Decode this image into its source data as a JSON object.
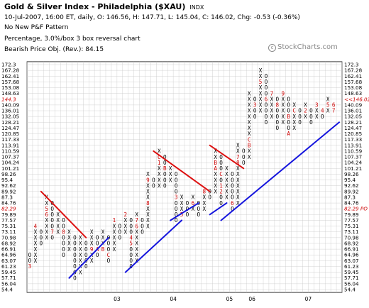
{
  "header": {
    "title": "Gold & Silver Index - Philadelphia ($XAU)",
    "index_tag": "INDX",
    "quote_line": "10-Jul-2007, 16:00 ET, daily, O: 146.56, H: 147.71, L: 145.04, C: 146.02, Chg: -0.53 (-0.36%)",
    "pattern_line": "No New P&F Pattern",
    "method_line": "Percentage, 3.0%/box 3 box reversal chart",
    "objective_line": "Bearish Price Obj. (Rev.): 84.15"
  },
  "watermark": {
    "symbol": "c",
    "text": "StockCharts.com"
  },
  "chart_data": {
    "type": "point-and-figure",
    "box_percent": 3.0,
    "reversal_boxes": 3,
    "y_levels": [
      "172.3",
      "167.28",
      "162.41",
      "157.68",
      "153.08",
      "148.63",
      "144.3",
      "140.09",
      "136.01",
      "132.05",
      "128.21",
      "124.47",
      "120.85",
      "117.33",
      "113.91",
      "110.59",
      "107.37",
      "104.24",
      "101.21",
      "98.26",
      "95.4",
      "92.62",
      "89.92",
      "87.3",
      "84.76",
      "82.29",
      "79.89",
      "77.57",
      "75.31",
      "73.11",
      "70.98",
      "68.92",
      "66.91",
      "64.96",
      "63.07",
      "61.23",
      "59.45",
      "57.71",
      "56.04",
      "54.4"
    ],
    "x_labels": [
      {
        "label": "03",
        "col": 16
      },
      {
        "label": "04",
        "col": 26
      },
      {
        "label": "05",
        "col": 36
      },
      {
        "label": "06",
        "col": 40
      },
      {
        "label": "07",
        "col": 50
      }
    ],
    "left_flags": [
      {
        "text": "144.3",
        "level": 144.3,
        "color": "#cc0000"
      },
      {
        "text": "82.29",
        "level": 82.29,
        "color": "#cc0000"
      }
    ],
    "right_flags": [
      {
        "text": "<<146.02",
        "level": 144.3,
        "color": "#cc0000"
      },
      {
        "text": "82.29 PO",
        "level": 82.29,
        "color": "#cc0000"
      }
    ],
    "columns": [
      {
        "col": 0,
        "type": "O",
        "from": 61.23,
        "to": 64.96,
        "marks": {
          "61.23": "3"
        }
      },
      {
        "col": 1,
        "type": "X",
        "from": 63.07,
        "to": 75.31,
        "marks": {
          "75.31": "4"
        }
      },
      {
        "col": 2,
        "type": "O",
        "from": 68.92,
        "to": 73.11
      },
      {
        "col": 3,
        "type": "X",
        "from": 70.98,
        "to": 87.3,
        "marks": {
          "82.29": "5",
          "79.89": "6"
        }
      },
      {
        "col": 4,
        "type": "O",
        "from": 70.98,
        "to": 84.76,
        "marks": {
          "73.11": "7"
        }
      },
      {
        "col": 5,
        "type": "X",
        "from": 73.11,
        "to": 79.89
      },
      {
        "col": 6,
        "type": "O",
        "from": 64.96,
        "to": 77.57,
        "marks": {
          "73.11": "8"
        }
      },
      {
        "col": 7,
        "type": "X",
        "from": 66.91,
        "to": 73.11
      },
      {
        "col": 8,
        "type": "O",
        "from": 57.71,
        "to": 70.98
      },
      {
        "col": 9,
        "type": "X",
        "from": 59.45,
        "to": 70.98
      },
      {
        "col": 10,
        "type": "O",
        "from": 61.23,
        "to": 68.92
      },
      {
        "col": 11,
        "type": "X",
        "from": 63.07,
        "to": 73.11,
        "marks": {
          "66.91": "9"
        }
      },
      {
        "col": 12,
        "type": "O",
        "from": 64.96,
        "to": 70.98,
        "marks": {
          "66.91": "A"
        }
      },
      {
        "col": 13,
        "type": "X",
        "from": 66.91,
        "to": 73.11,
        "marks": {
          "66.91": "B"
        }
      },
      {
        "col": 14,
        "type": "O",
        "from": 63.07,
        "to": 70.98,
        "marks": {
          "64.96": "C"
        }
      },
      {
        "col": 15,
        "type": "X",
        "from": 66.91,
        "to": 77.57,
        "marks": {
          "77.57": "1"
        }
      },
      {
        "col": 16,
        "type": "O",
        "from": 70.98,
        "to": 75.31
      },
      {
        "col": 17,
        "type": "X",
        "from": 73.11,
        "to": 79.89,
        "marks": {
          "79.89": "2"
        }
      },
      {
        "col": 18,
        "type": "O",
        "from": 61.23,
        "to": 77.57,
        "marks": {
          "70.98": "4",
          "68.92": "5"
        }
      },
      {
        "col": 19,
        "type": "X",
        "from": 63.07,
        "to": 79.89,
        "marks": {
          "75.31": "6",
          "77.57": "7"
        }
      },
      {
        "col": 20,
        "type": "O",
        "from": 73.11,
        "to": 77.57
      },
      {
        "col": 21,
        "type": "X",
        "from": 75.31,
        "to": 98.26,
        "marks": {
          "84.76": "8",
          "95.4": "9"
        }
      },
      {
        "col": 22,
        "type": "O",
        "from": 92.62,
        "to": 95.4
      },
      {
        "col": 23,
        "type": "X",
        "from": 92.62,
        "to": 110.59,
        "marks": {
          "107.37": "C",
          "104.24": "1"
        }
      },
      {
        "col": 24,
        "type": "O",
        "from": 92.62,
        "to": 107.37,
        "marks": {
          "101.21": "B"
        }
      },
      {
        "col": 25,
        "type": "X",
        "from": 95.4,
        "to": 101.21
      },
      {
        "col": 26,
        "type": "O",
        "from": 77.57,
        "to": 98.26,
        "marks": {
          "87.3": "3"
        }
      },
      {
        "col": 27,
        "type": "X",
        "from": 79.89,
        "to": 87.3,
        "marks": {
          "79.89": "5"
        }
      },
      {
        "col": 28,
        "type": "O",
        "from": 79.89,
        "to": 84.76
      },
      {
        "col": 29,
        "type": "X",
        "from": 82.29,
        "to": 87.3,
        "marks": {
          "84.76": "6"
        }
      },
      {
        "col": 30,
        "type": "O",
        "from": 79.89,
        "to": 84.76
      },
      {
        "col": 31,
        "type": "X",
        "from": 82.29,
        "to": 89.92,
        "marks": {
          "89.92": "8"
        }
      },
      {
        "col": 32,
        "type": "O",
        "from": 87.3,
        "to": 89.92
      },
      {
        "col": 33,
        "type": "X",
        "from": 89.92,
        "to": 110.59,
        "marks": {
          "101.21": "A",
          "104.24": "B"
        }
      },
      {
        "col": 34,
        "type": "O",
        "from": 84.76,
        "to": 107.37,
        "marks": {
          "98.26": "C",
          "92.62": "1",
          "89.92": "2"
        }
      },
      {
        "col": 35,
        "type": "X",
        "from": 87.3,
        "to": 101.21
      },
      {
        "col": 36,
        "type": "O",
        "from": 82.29,
        "to": 98.26,
        "marks": {
          "84.76": "6"
        }
      },
      {
        "col": 37,
        "type": "X",
        "from": 84.76,
        "to": 113.91,
        "marks": {
          "107.37": "7",
          "104.24": "8"
        }
      },
      {
        "col": 38,
        "type": "O",
        "from": 104.24,
        "to": 110.59
      },
      {
        "col": 39,
        "type": "X",
        "from": 107.37,
        "to": 148.63,
        "marks": {
          "113.91": "B",
          "117.33": "C"
        }
      },
      {
        "col": 40,
        "type": "O",
        "from": 132.05,
        "to": 144.3,
        "marks": {
          "140.09": "3"
        }
      },
      {
        "col": 41,
        "type": "X",
        "from": 136.01,
        "to": 167.28,
        "marks": {
          "157.68": "5"
        }
      },
      {
        "col": 42,
        "type": "O",
        "from": 128.21,
        "to": 162.41,
        "marks": {
          "144.3": "6"
        }
      },
      {
        "col": 43,
        "type": "X",
        "from": 132.05,
        "to": 148.63,
        "marks": {
          "148.63": "7"
        }
      },
      {
        "col": 44,
        "type": "O",
        "from": 124.47,
        "to": 144.3,
        "marks": {
          "140.09": "8"
        }
      },
      {
        "col": 45,
        "type": "X",
        "from": 128.21,
        "to": 148.63,
        "marks": {
          "148.63": "9"
        }
      },
      {
        "col": 46,
        "type": "O",
        "from": 120.85,
        "to": 144.3,
        "marks": {
          "120.85": "A",
          "132.05": "B"
        }
      },
      {
        "col": 47,
        "type": "X",
        "from": 124.47,
        "to": 140.09,
        "marks": {
          "136.01": "C"
        }
      },
      {
        "col": 48,
        "type": "O",
        "from": 128.21,
        "to": 136.01,
        "marks": {
          "140.09": "1"
        }
      },
      {
        "col": 49,
        "type": "X",
        "from": 132.05,
        "to": 140.09,
        "marks": {
          "136.01": "2"
        }
      },
      {
        "col": 50,
        "type": "O",
        "from": 128.21,
        "to": 136.01
      },
      {
        "col": 51,
        "type": "X",
        "from": 132.05,
        "to": 140.09,
        "marks": {
          "140.09": "3"
        }
      },
      {
        "col": 52,
        "type": "O",
        "from": 132.05,
        "to": 136.01,
        "marks": {
          "136.01": "4"
        }
      },
      {
        "col": 53,
        "type": "X",
        "from": 136.01,
        "to": 144.3,
        "marks": {
          "140.09": "5"
        }
      },
      {
        "col": 54,
        "type": "O",
        "from": 136.01,
        "to": 140.09,
        "marks": {
          "140.09": "6",
          "136.01": "7"
        }
      }
    ],
    "trend_lines": [
      {
        "kind": "bearish-resistance",
        "color": "#dd1111",
        "from": {
          "col": 2,
          "level": 89.92
        },
        "to": {
          "col": 10,
          "level": 70.98
        }
      },
      {
        "kind": "bearish-resistance",
        "color": "#dd1111",
        "from": {
          "col": 22,
          "level": 110.59
        },
        "to": {
          "col": 32,
          "level": 89.92
        }
      },
      {
        "kind": "bearish-resistance",
        "color": "#dd1111",
        "from": {
          "col": 32,
          "level": 113.91
        },
        "to": {
          "col": 38,
          "level": 101.21
        }
      },
      {
        "kind": "bullish-support",
        "color": "#1515dd",
        "from": {
          "col": 7,
          "level": 57.71
        },
        "to": {
          "col": 14,
          "level": 70.98
        }
      },
      {
        "kind": "bullish-support",
        "color": "#1515dd",
        "from": {
          "col": 17,
          "level": 59.45
        },
        "to": {
          "col": 27,
          "level": 77.57
        }
      },
      {
        "kind": "bullish-support",
        "color": "#1515dd",
        "from": {
          "col": 25,
          "level": 77.57
        },
        "to": {
          "col": 30,
          "level": 84.76
        }
      },
      {
        "kind": "bullish-support",
        "color": "#1515dd",
        "from": {
          "col": 32,
          "level": 79.89
        },
        "to": {
          "col": 35,
          "level": 84.76
        }
      },
      {
        "kind": "bullish-support",
        "color": "#1515dd",
        "from": {
          "col": 34,
          "level": 77.57
        },
        "to": {
          "col": 55,
          "level": 128.21
        }
      }
    ],
    "colors": {
      "x_mark": "#000000",
      "o_mark": "#000000",
      "month_mark": "#cc0000",
      "grid": "#c8c8c8"
    }
  }
}
